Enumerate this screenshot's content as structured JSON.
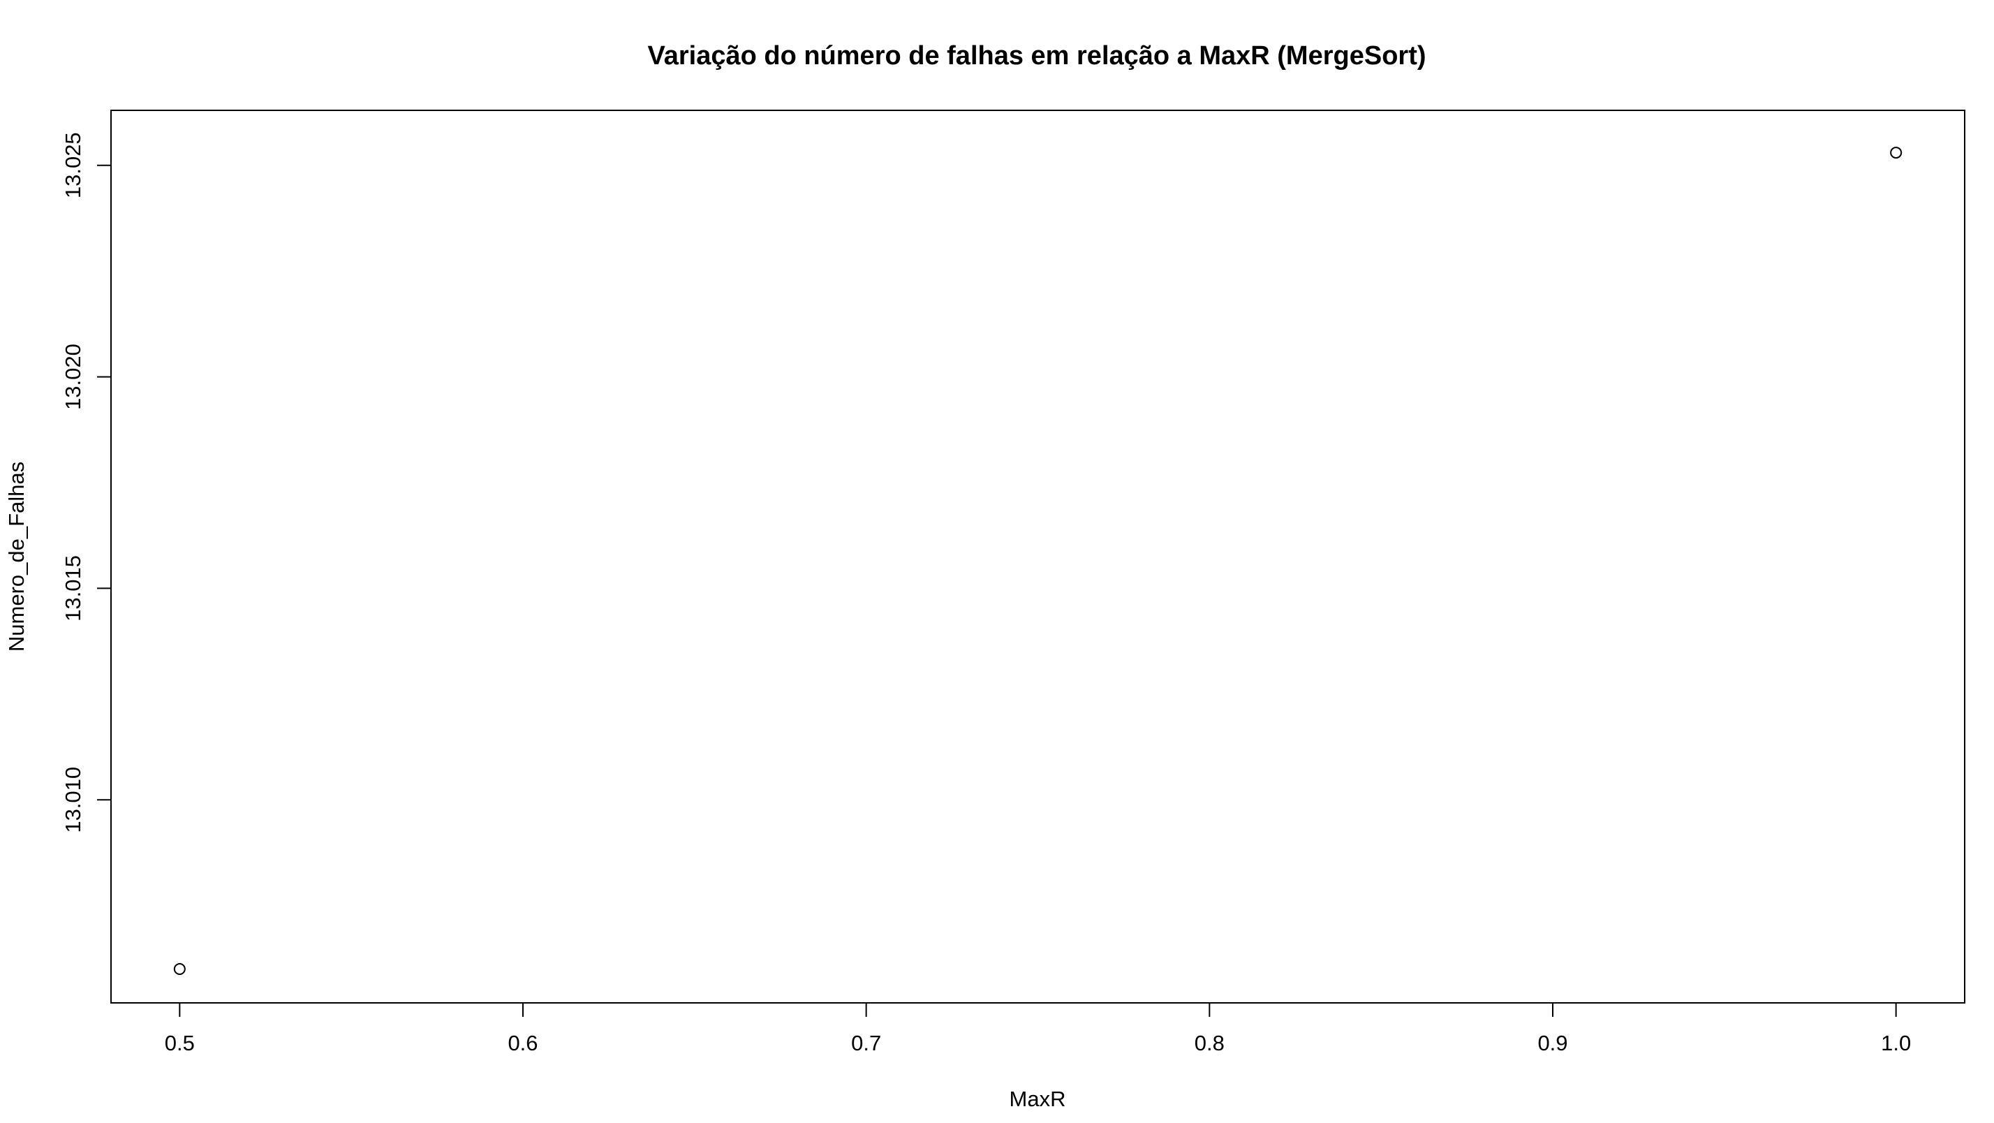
{
  "chart_data": {
    "type": "scatter",
    "title": "Variação do número de falhas em relação a MaxR (MergeSort)",
    "xlabel": "MaxR",
    "ylabel": "Numero_de_Falhas",
    "xlim": [
      0.48,
      1.02
    ],
    "ylim": [
      13.0052,
      13.0263
    ],
    "x_ticks": [
      {
        "value": 0.5,
        "label": "0.5"
      },
      {
        "value": 0.6,
        "label": "0.6"
      },
      {
        "value": 0.7,
        "label": "0.7"
      },
      {
        "value": 0.8,
        "label": "0.8"
      },
      {
        "value": 0.9,
        "label": "0.9"
      },
      {
        "value": 1.0,
        "label": "1.0"
      }
    ],
    "y_ticks": [
      {
        "value": 13.01,
        "label": "13.010"
      },
      {
        "value": 13.015,
        "label": "13.015"
      },
      {
        "value": 13.02,
        "label": "13.020"
      },
      {
        "value": 13.025,
        "label": "13.025"
      }
    ],
    "points": [
      {
        "x": 0.5,
        "y": 13.006
      },
      {
        "x": 1.0,
        "y": 13.0253
      }
    ],
    "marker": "open-circle",
    "grid": false,
    "legend": "none",
    "color": "#000000"
  }
}
